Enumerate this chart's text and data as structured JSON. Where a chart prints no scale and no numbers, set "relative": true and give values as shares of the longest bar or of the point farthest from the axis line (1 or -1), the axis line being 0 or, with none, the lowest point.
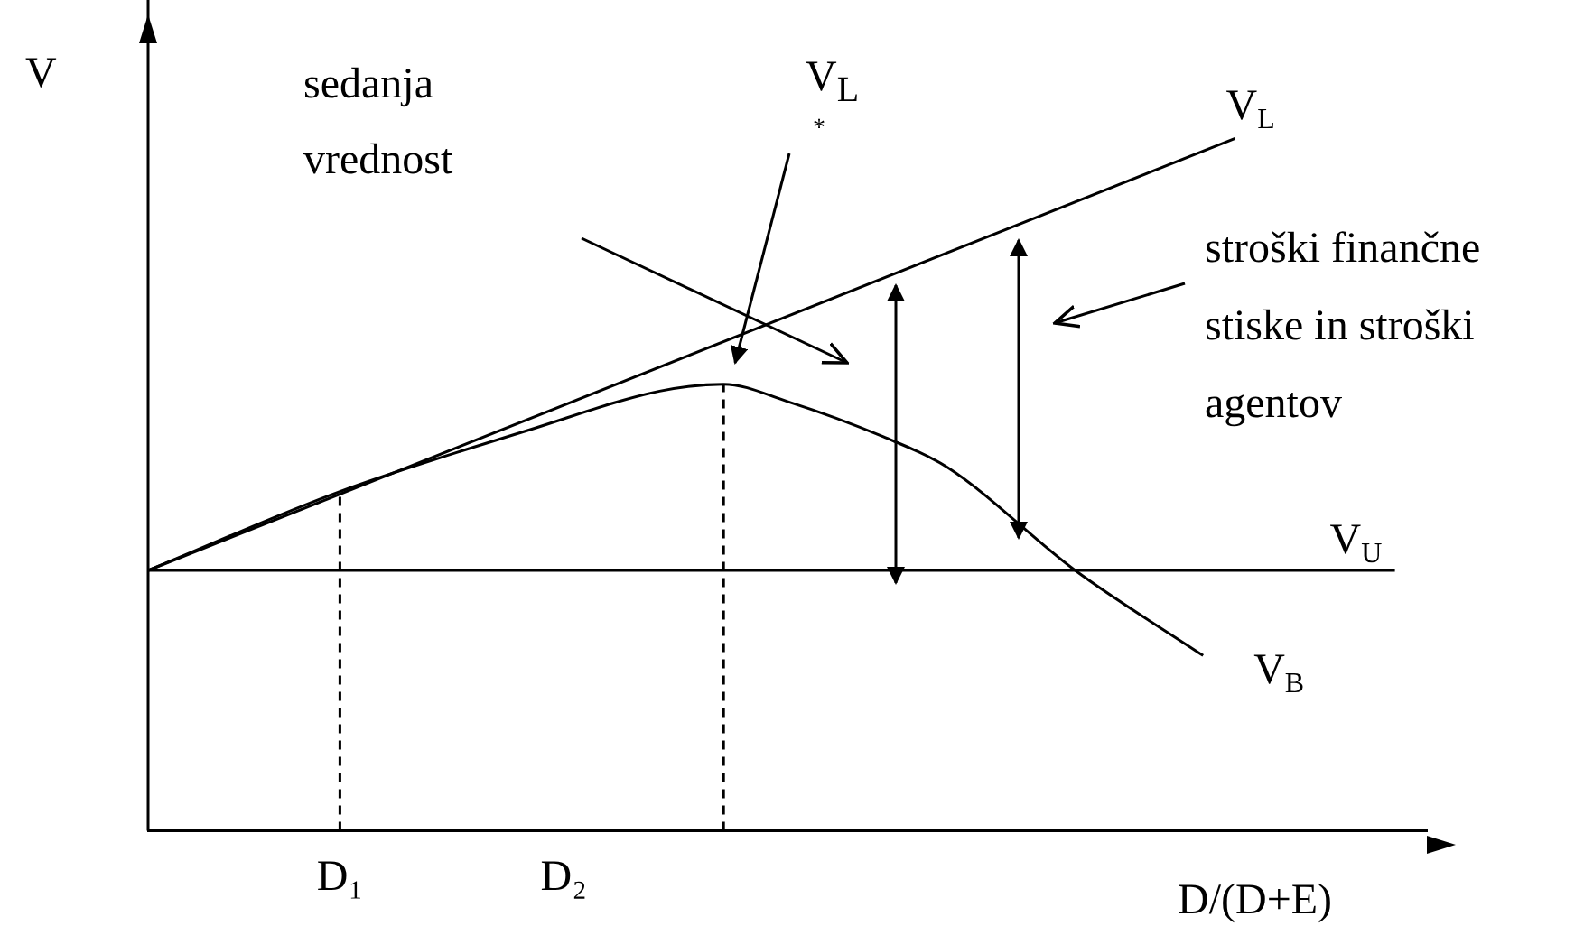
{
  "chart_data": {
    "type": "line",
    "relative": true,
    "ylabel": "V",
    "xlabel": "D/(D+E)",
    "legend": false,
    "grid": false,
    "marker": "none",
    "line_style": "solid",
    "categories": [
      null,
      null,
      null,
      null,
      null,
      null,
      "D₁",
      null,
      null,
      null,
      null,
      null,
      null,
      "D₂",
      null,
      null,
      null,
      null,
      null,
      null,
      null,
      null,
      null,
      null,
      null,
      null,
      null,
      null,
      null,
      null,
      null,
      null,
      null,
      null,
      null,
      null,
      null,
      null,
      null,
      null,
      null
    ],
    "annotations": [
      "sedanja vrednost",
      "V$_{L}$",
      "*",
      "stroški finančne stiske in stroški agentov"
    ],
    "series": [
      {
        "name": "V$_{L}$",
        "color": "#000000",
        "values": [
          0.376,
          null,
          null,
          null,
          null,
          null,
          null,
          null,
          null,
          null,
          null,
          null,
          null,
          null,
          null,
          null,
          null,
          null,
          null,
          null,
          null,
          null,
          null,
          null,
          null,
          null,
          null,
          null,
          null,
          null,
          null,
          null,
          null,
          null,
          1,
          null,
          null,
          null,
          null,
          null,
          null
        ]
      },
      {
        "name": "V$_{U}$",
        "color": "#000000",
        "values": [
          0.376,
          null,
          null,
          null,
          null,
          null,
          null,
          null,
          null,
          null,
          null,
          null,
          null,
          null,
          null,
          null,
          null,
          null,
          null,
          null,
          null,
          null,
          null,
          null,
          null,
          null,
          null,
          null,
          null,
          null,
          null,
          null,
          null,
          null,
          null,
          null,
          null,
          null,
          null,
          0.376,
          null
        ]
      },
      {
        "name": "V$_{B}$",
        "color": "#000000",
        "values": [
          0.376,
          null,
          null,
          null,
          null,
          null,
          0.49,
          null,
          null,
          null,
          null,
          null,
          0.58,
          null,
          null,
          null,
          0.635,
          null,
          0.645,
          null,
          0.62,
          null,
          null,
          0.569,
          null,
          0.525,
          null,
          null,
          null,
          0.376,
          null,
          null,
          null,
          0.253,
          null,
          null,
          null,
          null,
          null,
          null,
          null
        ]
      }
    ]
  }
}
